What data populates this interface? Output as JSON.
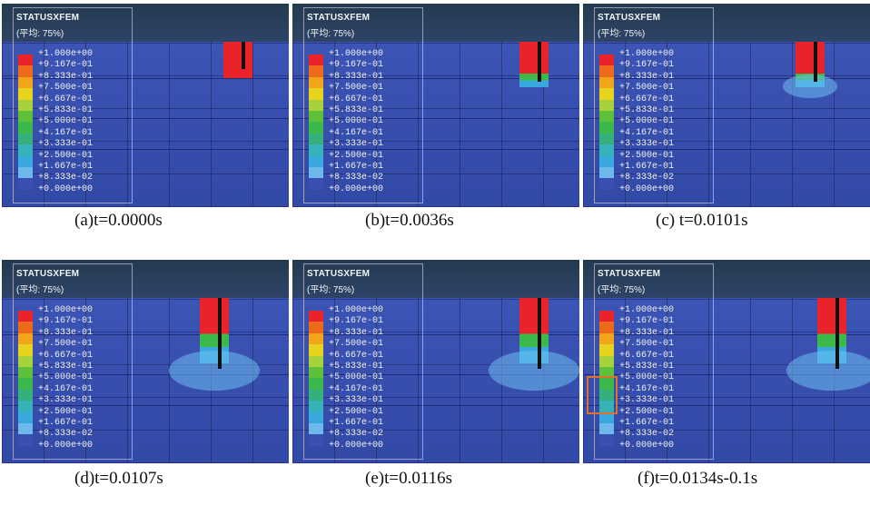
{
  "legend": {
    "title": "STATUSXFEM",
    "subtitle": "(平均: 75%)",
    "levels": [
      "+1.000e+00",
      "+9.167e-01",
      "+8.333e-01",
      "+7.500e-01",
      "+6.667e-01",
      "+5.833e-01",
      "+5.000e-01",
      "+4.167e-01",
      "+3.333e-01",
      "+2.500e-01",
      "+1.667e-01",
      "+8.333e-02",
      "+0.000e+00"
    ],
    "colors": [
      "#e8242a",
      "#f06a1c",
      "#f3a51a",
      "#e8d31e",
      "#a8d23a",
      "#5fc03b",
      "#3db84a",
      "#35b07c",
      "#35b3b8",
      "#38a8de",
      "#6fb8ec",
      "#3a50b0"
    ]
  },
  "panels": [
    {
      "caption": "(a)t=0.0000s",
      "stage": 0
    },
    {
      "caption": "(b)t=0.0036s",
      "stage": 1
    },
    {
      "caption": "(c) t=0.0101s",
      "stage": 2
    },
    {
      "caption": "(d)t=0.0107s",
      "stage": 3
    },
    {
      "caption": "(e)t=0.0116s",
      "stage": 4
    },
    {
      "caption": "(f)t=0.0134s-0.1s",
      "stage": 5
    }
  ]
}
